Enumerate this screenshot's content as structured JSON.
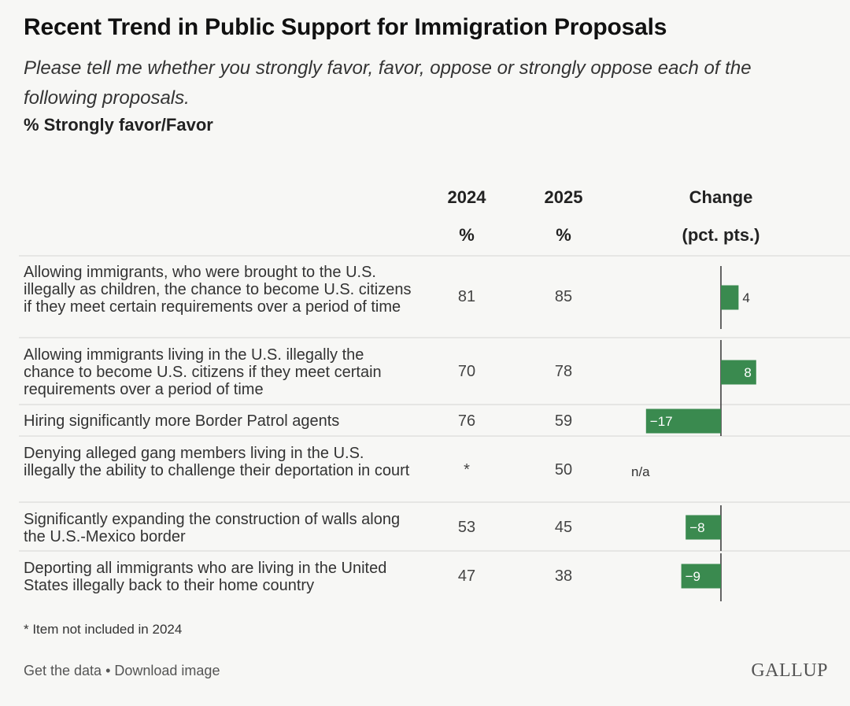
{
  "title": "Recent Trend in Public Support for Immigration Proposals",
  "subtitle": "Please tell me whether you strongly favor, favor, oppose or strongly oppose each of the following proposals.",
  "measure": "% Strongly favor/Favor",
  "columns": {
    "y2024": {
      "line1": "2024",
      "line2": "%"
    },
    "y2025": {
      "line1": "2025",
      "line2": "%"
    },
    "change": {
      "line1": "Change",
      "line2": "(pct. pts.)"
    }
  },
  "colors": {
    "bar": "#3a8a4f",
    "axis": "#333333",
    "bar_label_inside": "#ffffff",
    "bar_label_outside": "#333333"
  },
  "chart_data": {
    "type": "bar",
    "categories": [
      "Allowing immigrants, who were brought to the U.S. illegally as children, the chance to become U.S. citizens if they meet certain requirements over a period of time",
      "Allowing immigrants living in the U.S. illegally the chance to become U.S. citizens if they meet certain requirements over a period of time",
      "Hiring significantly more Border Patrol agents",
      "Denying alleged gang members living in the U.S. illegally the ability to challenge their deportation in court",
      "Significantly expanding the construction of walls along the U.S.-Mexico border",
      "Deporting all immigrants who are living in the United States illegally back to their home country"
    ],
    "rows": [
      {
        "y2024": "81",
        "y2025": "85",
        "change": 4,
        "change_label": "4"
      },
      {
        "y2024": "70",
        "y2025": "78",
        "change": 8,
        "change_label": "8"
      },
      {
        "y2024": "76",
        "y2025": "59",
        "change": -17,
        "change_label": "−17"
      },
      {
        "y2024": "*",
        "y2025": "50",
        "change": null,
        "change_label": "n/a"
      },
      {
        "y2024": "53",
        "y2025": "45",
        "change": -8,
        "change_label": "−8"
      },
      {
        "y2024": "47",
        "y2025": "38",
        "change": -9,
        "change_label": "−9"
      }
    ]
  },
  "footnote": "* Item not included in 2024",
  "links": "Get the data • Download image",
  "brand": "GALLUP"
}
